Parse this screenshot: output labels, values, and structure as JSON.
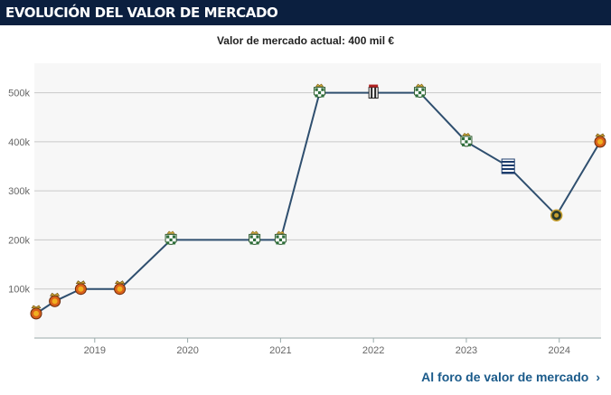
{
  "header": {
    "title": "Evolución del valor de mercado"
  },
  "chart_data": {
    "type": "line",
    "title": "Valor de mercado actual: 400 mil €",
    "xlabel": "",
    "ylabel": "",
    "x_ticks": [
      "2019",
      "2020",
      "2021",
      "2022",
      "2023",
      "2024"
    ],
    "y_ticks": [
      "100k",
      "200k",
      "300k",
      "400k",
      "500k"
    ],
    "ylim": [
      0,
      560000
    ],
    "xlim": [
      2018.35,
      2024.45
    ],
    "grid": true,
    "series": [
      {
        "name": "Valor de mercado",
        "color": "#2f4f6f",
        "points": [
          {
            "x": 2018.35,
            "y": 50000,
            "club": "orange"
          },
          {
            "x": 2018.57,
            "y": 75000,
            "club": "orange"
          },
          {
            "x": 2018.85,
            "y": 100000,
            "club": "orange"
          },
          {
            "x": 2019.27,
            "y": 100000,
            "club": "orange"
          },
          {
            "x": 2019.82,
            "y": 200000,
            "club": "checkered"
          },
          {
            "x": 2020.72,
            "y": 200000,
            "club": "checkered"
          },
          {
            "x": 2021.0,
            "y": 200000,
            "club": "checkered"
          },
          {
            "x": 2021.42,
            "y": 500000,
            "club": "checkered"
          },
          {
            "x": 2022.0,
            "y": 500000,
            "club": "striped"
          },
          {
            "x": 2022.5,
            "y": 500000,
            "club": "checkered"
          },
          {
            "x": 2023.0,
            "y": 400000,
            "club": "checkered"
          },
          {
            "x": 2023.45,
            "y": 350000,
            "club": "blue-white"
          },
          {
            "x": 2023.97,
            "y": 250000,
            "club": "dark"
          },
          {
            "x": 2024.5,
            "y": 400000,
            "club": "orange"
          }
        ]
      }
    ]
  },
  "footer": {
    "link_label": "Al foro de valor de mercado",
    "chevron": "›"
  }
}
